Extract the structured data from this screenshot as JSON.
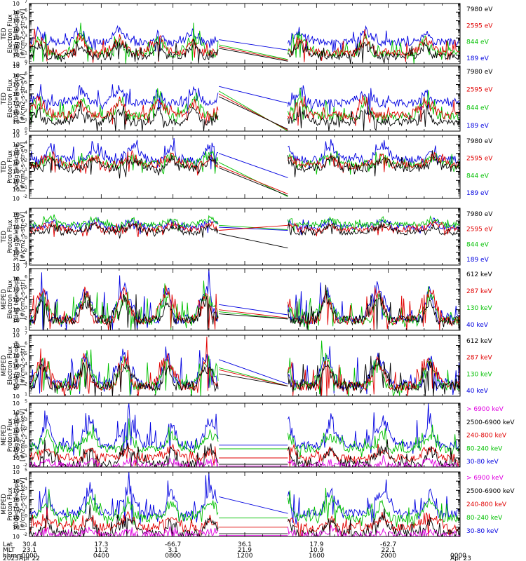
{
  "chart_data": [
    {
      "type": "line",
      "ylabel": [
        "TED",
        "Electron Flux",
        "0deg telescope",
        "[#/cm2-s-str-eV]"
      ],
      "yscale": "log",
      "yexp": [
        0,
        7
      ],
      "ylim": [
        1,
        10000000
      ],
      "legend": [
        {
          "label": "7980 eV",
          "color": "#000000"
        },
        {
          "label": "2595 eV",
          "color": "#e00000"
        },
        {
          "label": "844 eV",
          "color": "#00c000"
        },
        {
          "label": "189 eV",
          "color": "#0000e0"
        }
      ],
      "series": [
        {
          "color": "#0000e0",
          "base": 2.5,
          "amp": 1.6,
          "passes": [
            0.02,
            0.12,
            0.21,
            0.3,
            0.38,
            0.46,
            0.55,
            0.63,
            0.78,
            0.92
          ],
          "gap_start": [
            2.8,
            1.6
          ]
        },
        {
          "color": "#00c000",
          "base": 1.2,
          "amp": 2.2,
          "passes": [
            0.02,
            0.12,
            0.21,
            0.3,
            0.38,
            0.46,
            0.55,
            0.63,
            0.78,
            0.92
          ],
          "gap_start": [
            2.2,
            0.5
          ]
        },
        {
          "color": "#e00000",
          "base": 1.3,
          "amp": 2.0,
          "passes": [
            0.02,
            0.12,
            0.21,
            0.3,
            0.38,
            0.46,
            0.55,
            0.63,
            0.78,
            0.92
          ],
          "gap_start": [
            2.0,
            0.4
          ]
        },
        {
          "color": "#000000",
          "base": 0.9,
          "amp": 1.6,
          "passes": [
            0.02,
            0.12,
            0.21,
            0.3,
            0.38,
            0.46,
            0.55,
            0.63,
            0.78,
            0.92
          ],
          "gap_start": [
            1.8,
            0.3
          ]
        }
      ]
    },
    {
      "type": "line",
      "ylabel": [
        "TED",
        "Electron Flux",
        "30deg telescope",
        "[#/cm2-s-str-eV]"
      ],
      "yscale": "log",
      "yexp": [
        0,
        7
      ],
      "ylim": [
        1,
        10000000
      ],
      "legend": [
        {
          "label": "7980 eV",
          "color": "#000000"
        },
        {
          "label": "2595 eV",
          "color": "#e00000"
        },
        {
          "label": "844 eV",
          "color": "#00c000"
        },
        {
          "label": "189 eV",
          "color": "#0000e0"
        }
      ],
      "series": [
        {
          "color": "#0000e0",
          "base": 3.0,
          "amp": 1.5,
          "passes": [
            0.02,
            0.12,
            0.21,
            0.3,
            0.38,
            0.46,
            0.55,
            0.63,
            0.78,
            0.92
          ],
          "gap_start": [
            4.8,
            3.0
          ]
        },
        {
          "color": "#00c000",
          "base": 1.6,
          "amp": 2.2,
          "passes": [
            0.02,
            0.12,
            0.21,
            0.3,
            0.38,
            0.46,
            0.55,
            0.63,
            0.78,
            0.92
          ],
          "gap_start": [
            4.3,
            0.0
          ]
        },
        {
          "color": "#e00000",
          "base": 1.7,
          "amp": 1.9,
          "passes": [
            0.02,
            0.12,
            0.21,
            0.3,
            0.38,
            0.46,
            0.55,
            0.63,
            0.78,
            0.92
          ],
          "gap_start": [
            4.0,
            0.1
          ]
        },
        {
          "color": "#000000",
          "base": 1.0,
          "amp": 1.5,
          "passes": [
            0.02,
            0.12,
            0.21,
            0.3,
            0.38,
            0.46,
            0.55,
            0.63,
            0.78,
            0.92
          ],
          "gap_start": [
            3.7,
            0.2
          ]
        }
      ]
    },
    {
      "type": "line",
      "ylabel": [
        "TED",
        "Proton Flux",
        "0deg telescope",
        "[#/cm2-s-str-eV]"
      ],
      "yscale": "log",
      "yexp": [
        -2,
        5
      ],
      "ylim": [
        0.01,
        100000
      ],
      "legend": [
        {
          "label": "7980 eV",
          "color": "#000000"
        },
        {
          "label": "2595 eV",
          "color": "#e00000"
        },
        {
          "label": "844 eV",
          "color": "#00c000"
        },
        {
          "label": "189 eV",
          "color": "#0000e0"
        }
      ],
      "series": [
        {
          "color": "#0000e0",
          "base": 2.3,
          "amp": 1.8,
          "passes": [
            0.05,
            0.15,
            0.24,
            0.33,
            0.42,
            0.52,
            0.6,
            0.7,
            0.82,
            0.94
          ],
          "gap_start": [
            3.0,
            0.3
          ]
        },
        {
          "color": "#00c000",
          "base": 1.8,
          "amp": 1.2,
          "passes": [
            0.05,
            0.15,
            0.24,
            0.33,
            0.42,
            0.52,
            0.6,
            0.7,
            0.82,
            0.94
          ],
          "gap_start": [
            2.0,
            -1.8
          ]
        },
        {
          "color": "#e00000",
          "base": 1.7,
          "amp": 1.2,
          "passes": [
            0.05,
            0.15,
            0.24,
            0.33,
            0.42,
            0.52,
            0.6,
            0.7,
            0.82,
            0.94
          ],
          "gap_start": [
            1.6,
            -1.5
          ]
        },
        {
          "color": "#000000",
          "base": 1.4,
          "amp": 1.2,
          "passes": [
            0.05,
            0.15,
            0.24,
            0.33,
            0.42,
            0.52,
            0.6,
            0.7,
            0.82,
            0.94
          ],
          "gap_start": [
            1.4,
            -1.7
          ]
        }
      ]
    },
    {
      "type": "line",
      "ylabel": [
        "TED",
        "Proton Flux",
        "30deg telescope",
        "[#/cm2-s-str-eV]"
      ],
      "yscale": "log",
      "yexp": [
        -4,
        5
      ],
      "ylim": [
        0.0001,
        100000
      ],
      "legend": [
        {
          "label": "7980 eV",
          "color": "#000000"
        },
        {
          "label": "2595 eV",
          "color": "#e00000"
        },
        {
          "label": "844 eV",
          "color": "#00c000"
        },
        {
          "label": "189 eV",
          "color": "#0000e0"
        }
      ],
      "series": [
        {
          "color": "#0000e0",
          "base": 2.0,
          "amp": 1.3,
          "passes": [
            0.05,
            0.15,
            0.24,
            0.33,
            0.42,
            0.52,
            0.6,
            0.7,
            0.82,
            0.94
          ],
          "gap_start": [
            2.0,
            1.5
          ]
        },
        {
          "color": "#00c000",
          "base": 2.4,
          "amp": 1.1,
          "passes": [
            0.05,
            0.15,
            0.24,
            0.33,
            0.42,
            0.52,
            0.6,
            0.7,
            0.82,
            0.94
          ],
          "gap_start": [
            2.3,
            1.6
          ]
        },
        {
          "color": "#e00000",
          "base": 1.6,
          "amp": 1.1,
          "passes": [
            0.05,
            0.15,
            0.24,
            0.33,
            0.42,
            0.52,
            0.6,
            0.7,
            0.82,
            0.94
          ],
          "gap_start": [
            1.5,
            2.3
          ]
        },
        {
          "color": "#000000",
          "base": 1.2,
          "amp": 1.3,
          "passes": [
            0.05,
            0.15,
            0.24,
            0.33,
            0.42,
            0.52,
            0.6,
            0.7,
            0.82,
            0.94
          ],
          "gap_start": [
            1.0,
            -1.3
          ]
        }
      ]
    },
    {
      "type": "line",
      "ylabel": [
        "MEPED",
        "Electron Flux",
        "0deg telescope",
        "[#/cm2-s-str]"
      ],
      "yscale": "log",
      "yexp": [
        1,
        7
      ],
      "ylim": [
        10,
        10000000
      ],
      "legend": [
        {
          "label": "612 keV",
          "color": "#000000"
        },
        {
          "label": "287 keV",
          "color": "#e00000"
        },
        {
          "label": "130 keV",
          "color": "#00c000"
        },
        {
          "label": "40 keV",
          "color": "#0000e0"
        }
      ],
      "series": [
        {
          "color": "#0000e0",
          "base": 2.1,
          "amp": 3.7,
          "passes": [
            0.03,
            0.13,
            0.22,
            0.32,
            0.41,
            0.51,
            0.59,
            0.69,
            0.81,
            0.93
          ],
          "gap_start": [
            3.5,
            2.5
          ]
        },
        {
          "color": "#00c000",
          "base": 2.0,
          "amp": 3.0,
          "passes": [
            0.03,
            0.13,
            0.22,
            0.32,
            0.41,
            0.51,
            0.59,
            0.69,
            0.81,
            0.93
          ],
          "gap_start": [
            2.8,
            2.1
          ]
        },
        {
          "color": "#e00000",
          "base": 2.0,
          "amp": 3.4,
          "passes": [
            0.03,
            0.13,
            0.22,
            0.32,
            0.41,
            0.51,
            0.59,
            0.69,
            0.81,
            0.93
          ],
          "gap_start": [
            3.0,
            2.2
          ]
        },
        {
          "color": "#000000",
          "base": 2.0,
          "amp": 2.6,
          "passes": [
            0.03,
            0.13,
            0.22,
            0.32,
            0.41,
            0.51,
            0.59,
            0.69,
            0.81,
            0.93
          ],
          "gap_start": [
            2.6,
            2.1
          ]
        }
      ]
    },
    {
      "type": "line",
      "ylabel": [
        "MEPED",
        "Electron Flux",
        "90deg telescope",
        "[#/cm2-s-str]"
      ],
      "yscale": "log",
      "yexp": [
        1,
        7
      ],
      "ylim": [
        10,
        10000000
      ],
      "legend": [
        {
          "label": "612 keV",
          "color": "#000000"
        },
        {
          "label": "287 keV",
          "color": "#e00000"
        },
        {
          "label": "130 keV",
          "color": "#00c000"
        },
        {
          "label": "40 keV",
          "color": "#0000e0"
        }
      ],
      "series": [
        {
          "color": "#0000e0",
          "base": 2.2,
          "amp": 3.6,
          "passes": [
            0.03,
            0.13,
            0.22,
            0.32,
            0.41,
            0.51,
            0.59,
            0.69,
            0.81,
            0.93
          ],
          "gap_start": [
            4.6,
            2.2
          ]
        },
        {
          "color": "#00c000",
          "base": 2.0,
          "amp": 3.3,
          "passes": [
            0.03,
            0.13,
            0.22,
            0.32,
            0.41,
            0.51,
            0.59,
            0.69,
            0.81,
            0.93
          ],
          "gap_start": [
            3.8,
            2.0
          ]
        },
        {
          "color": "#e00000",
          "base": 2.0,
          "amp": 3.3,
          "passes": [
            0.03,
            0.13,
            0.22,
            0.32,
            0.41,
            0.51,
            0.59,
            0.69,
            0.81,
            0.93
          ],
          "gap_start": [
            3.6,
            2.0
          ]
        },
        {
          "color": "#000000",
          "base": 2.0,
          "amp": 2.8,
          "passes": [
            0.03,
            0.13,
            0.22,
            0.32,
            0.41,
            0.51,
            0.59,
            0.69,
            0.81,
            0.93
          ],
          "gap_start": [
            3.2,
            2.0
          ]
        }
      ]
    },
    {
      "type": "line",
      "ylabel": [
        "MEPED",
        "Proton Flux",
        "0deg telescope",
        "[#/cm2-s-str-keV]"
      ],
      "yscale": "log",
      "yexp": [
        -2,
        5
      ],
      "ylim": [
        0.01,
        100000
      ],
      "legend": [
        {
          "label": "> 6900 keV",
          "color": "#e000e0"
        },
        {
          "label": "2500-6900 keV",
          "color": "#000000"
        },
        {
          "label": "240-800 keV",
          "color": "#e00000"
        },
        {
          "label": "80-240 keV",
          "color": "#00c000"
        },
        {
          "label": "30-80 keV",
          "color": "#0000e0"
        }
      ],
      "series": [
        {
          "color": "#0000e0",
          "base": 0.4,
          "amp": 3.6,
          "passes": [
            0.04,
            0.14,
            0.23,
            0.33,
            0.42,
            0.51,
            0.6,
            0.7,
            0.82,
            0.93
          ],
          "gap_start": [
            0.4,
            0.4
          ]
        },
        {
          "color": "#00c000",
          "base": 0.0,
          "amp": 2.0,
          "passes": [
            0.04,
            0.14,
            0.23,
            0.33,
            0.42,
            0.51,
            0.6,
            0.7,
            0.82,
            0.93
          ],
          "gap_start": [
            0.0,
            0.0
          ]
        },
        {
          "color": "#e00000",
          "base": -1.0,
          "amp": 1.2,
          "passes": [
            0.04,
            0.14,
            0.23,
            0.33,
            0.42,
            0.51,
            0.6,
            0.7,
            0.82,
            0.93
          ],
          "gap_start": [
            -1.0,
            -1.0
          ]
        },
        {
          "color": "#000000",
          "base": -1.7,
          "amp": 2.2,
          "passes": [
            0.04,
            0.14,
            0.23,
            0.33,
            0.42,
            0.51,
            0.6,
            0.7,
            0.82,
            0.93
          ],
          "gap_start": [
            -1.7,
            -1.7
          ]
        },
        {
          "color": "#e000e0",
          "base": -1.9,
          "amp": 0.7,
          "passes": [
            0.04,
            0.14,
            0.23,
            0.33,
            0.42,
            0.51,
            0.6,
            0.7,
            0.82,
            0.93
          ],
          "gap_start": [
            -1.9,
            -1.9
          ]
        }
      ]
    },
    {
      "type": "line",
      "ylabel": [
        "MEPED",
        "Proton Flux",
        "90deg telescope",
        "[#/cm2-s-str-keV]"
      ],
      "yscale": "log",
      "yexp": [
        -2,
        5
      ],
      "ylim": [
        0.01,
        100000
      ],
      "legend": [
        {
          "label": "> 6900 keV",
          "color": "#e000e0"
        },
        {
          "label": "2500-6900 keV",
          "color": "#000000"
        },
        {
          "label": "240-800 keV",
          "color": "#e00000"
        },
        {
          "label": "80-240 keV",
          "color": "#00c000"
        },
        {
          "label": "30-80 keV",
          "color": "#0000e0"
        }
      ],
      "series": [
        {
          "color": "#0000e0",
          "base": 0.5,
          "amp": 3.3,
          "passes": [
            0.04,
            0.14,
            0.23,
            0.33,
            0.42,
            0.51,
            0.6,
            0.7,
            0.82,
            0.93
          ],
          "gap_start": [
            2.3,
            0.5
          ]
        },
        {
          "color": "#00c000",
          "base": 0.0,
          "amp": 2.2,
          "passes": [
            0.04,
            0.14,
            0.23,
            0.33,
            0.42,
            0.51,
            0.6,
            0.7,
            0.82,
            0.93
          ],
          "gap_start": [
            0.0,
            0.0
          ]
        },
        {
          "color": "#e00000",
          "base": -1.0,
          "amp": 1.4,
          "passes": [
            0.04,
            0.14,
            0.23,
            0.33,
            0.42,
            0.51,
            0.6,
            0.7,
            0.82,
            0.93
          ],
          "gap_start": [
            -1.0,
            -1.0
          ]
        },
        {
          "color": "#000000",
          "base": -1.7,
          "amp": 2.0,
          "passes": [
            0.04,
            0.14,
            0.23,
            0.33,
            0.42,
            0.51,
            0.6,
            0.7,
            0.82,
            0.93
          ],
          "gap_start": [
            -1.7,
            -1.7
          ]
        },
        {
          "color": "#e000e0",
          "base": -1.9,
          "amp": 0.7,
          "passes": [
            0.04,
            0.14,
            0.23,
            0.33,
            0.42,
            0.51,
            0.6,
            0.7,
            0.82,
            0.93
          ],
          "gap_start": [
            -1.9,
            -1.9
          ]
        }
      ]
    }
  ],
  "time_axis": {
    "gap": [
      0.44,
      0.6
    ],
    "row_labels": [
      "Lat",
      "MLT",
      "hhmm",
      "2025"
    ],
    "columns": [
      {
        "pos": 0.0,
        "Lat": "30.4",
        "MLT": "23.1",
        "hhmm": "0000",
        "date": "Apr 22"
      },
      {
        "pos": 0.1667,
        "Lat": "17.3",
        "MLT": "11.2",
        "hhmm": "0400",
        "date": ""
      },
      {
        "pos": 0.3333,
        "Lat": "-66.7",
        "MLT": "3.1",
        "hhmm": "0800",
        "date": ""
      },
      {
        "pos": 0.5,
        "Lat": "36.1",
        "MLT": "21.9",
        "hhmm": "1200",
        "date": ""
      },
      {
        "pos": 0.6667,
        "Lat": "17.9",
        "MLT": "10.9",
        "hhmm": "1600",
        "date": ""
      },
      {
        "pos": 0.8333,
        "Lat": "-62.7",
        "MLT": "22.1",
        "hhmm": "2000",
        "date": ""
      },
      {
        "pos": 1.0,
        "Lat": "",
        "MLT": "",
        "hhmm": "0000",
        "date": "Apr 23"
      }
    ]
  }
}
